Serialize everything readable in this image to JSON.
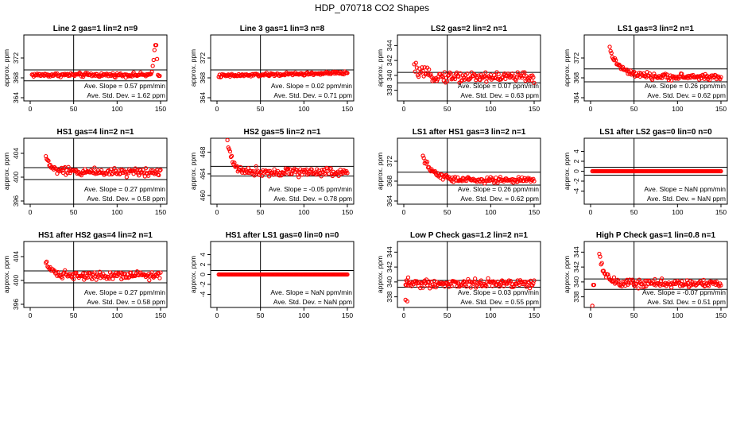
{
  "main_title": "HDP_070718  CO2 Shapes",
  "colors": {
    "points": "#ff0000",
    "lines": "#000000"
  },
  "chart_data": [
    {
      "type": "scatter",
      "title": "Line 2 gas=1 lin=2 n=9",
      "ylabel": "approx. ppm",
      "xlim": [
        0,
        150
      ],
      "ylim": [
        364,
        376
      ],
      "xticks": [
        "0",
        "50",
        "100",
        "150"
      ],
      "yticks": [
        "364",
        "368",
        "372"
      ],
      "vline": 50,
      "hlines": [
        369.6,
        367.4
      ],
      "slope_text": "Ave. Slope =  0.57  ppm/min",
      "std_text": "Ave. Std. Dev. =  1.62  ppm",
      "shape": {
        "kind": "noise",
        "level": 368.6,
        "noise": 0.3,
        "start": 2,
        "end": 150,
        "decay_amp": 0,
        "decay_tau": 1,
        "tail": [
          [
            140,
            369.2
          ],
          [
            141,
            370.4
          ],
          [
            142,
            371.6
          ],
          [
            143,
            373.6
          ],
          [
            144,
            374.6
          ],
          [
            145,
            374.6
          ],
          [
            146,
            371.8
          ],
          [
            147,
            368.6
          ],
          [
            148,
            368.4
          ],
          [
            149,
            368.4
          ]
        ]
      }
    },
    {
      "type": "scatter",
      "title": "Line 3 gas=1 lin=3 n=8",
      "ylabel": "approx. ppm",
      "xlim": [
        0,
        150
      ],
      "ylim": [
        364,
        376
      ],
      "xticks": [
        "0",
        "50",
        "100",
        "150"
      ],
      "yticks": [
        "364",
        "368",
        "372"
      ],
      "vline": 50,
      "hlines": [
        369.6
      ],
      "slope_text": "Ave. Slope =  0.02  ppm/min",
      "std_text": "Ave. Std. Dev. =  0.71  ppm",
      "shape": {
        "kind": "noise",
        "level": 368.4,
        "noise": 0.25,
        "start": 2,
        "end": 150,
        "decay_amp": 0,
        "decay_tau": 1,
        "ramp": 0.6
      }
    },
    {
      "type": "scatter",
      "title": "LS2 gas=2 lin=2 n=1",
      "ylabel": "approx. ppm",
      "xlim": [
        0,
        150
      ],
      "ylim": [
        337,
        345
      ],
      "xticks": [
        "0",
        "50",
        "100",
        "150"
      ],
      "yticks": [
        "338",
        "340",
        "342",
        "344"
      ],
      "vline": 50,
      "hlines": [
        340.4,
        339
      ],
      "slope_text": "Ave. Slope =  0.07  ppm/min",
      "std_text": "Ave. Std. Dev. =  0.63  ppm",
      "shape": {
        "kind": "noise",
        "level": 339.8,
        "noise": 0.55,
        "start": 12,
        "end": 150,
        "decay_amp": 1.2,
        "decay_tau": 10
      }
    },
    {
      "type": "scatter",
      "title": "LS1 gas=3 lin=2 n=1",
      "ylabel": "approx. ppm",
      "xlim": [
        0,
        150
      ],
      "ylim": [
        364,
        376
      ],
      "xticks": [
        "0",
        "50",
        "100",
        "150"
      ],
      "yticks": [
        "364",
        "368",
        "372"
      ],
      "vline": 50,
      "hlines": [
        369.8,
        367.2
      ],
      "slope_text": "Ave. Slope =  0.26  ppm/min",
      "std_text": "Ave. Std. Dev. =  0.62  ppm",
      "shape": {
        "kind": "noise",
        "level": 368.2,
        "noise": 0.45,
        "start": 22,
        "end": 150,
        "decay_amp": 5.5,
        "decay_tau": 12
      }
    },
    {
      "type": "scatter",
      "title": "HS1 gas=4 lin=2 n=1",
      "ylabel": "approx. ppm",
      "xlim": [
        0,
        150
      ],
      "ylim": [
        396,
        406
      ],
      "xticks": [
        "0",
        "50",
        "100",
        "150"
      ],
      "yticks": [
        "396",
        "400",
        "404"
      ],
      "vline": 50,
      "hlines": [
        401.6,
        399.6
      ],
      "slope_text": "Ave. Slope =  0.27  ppm/min",
      "std_text": "Ave. Std. Dev. =  0.58  ppm",
      "shape": {
        "kind": "noise",
        "level": 400.9,
        "noise": 0.5,
        "start": 18,
        "end": 150,
        "decay_amp": 2.5,
        "decay_tau": 6
      }
    },
    {
      "type": "scatter",
      "title": "HS2 gas=5 lin=2 n=1",
      "ylabel": "approx. ppm",
      "xlim": [
        0,
        150
      ],
      "ylim": [
        459,
        470
      ],
      "xticks": [
        "0",
        "50",
        "100",
        "150"
      ],
      "yticks": [
        "460",
        "464",
        "468"
      ],
      "vline": 50,
      "hlines": [
        465.4,
        463.6
      ],
      "slope_text": "Ave. Slope =  -0.05  ppm/min",
      "std_text": "Ave. Std. Dev. =  0.78  ppm",
      "shape": {
        "kind": "noise",
        "level": 464.4,
        "noise": 0.6,
        "start": 12,
        "end": 150,
        "decay_amp": 5.5,
        "decay_tau": 6
      }
    },
    {
      "type": "scatter",
      "title": "LS1 after HS1 gas=3 lin=2 n=1",
      "ylabel": "approx. ppm",
      "xlim": [
        0,
        150
      ],
      "ylim": [
        364,
        376
      ],
      "xticks": [
        "0",
        "50",
        "100",
        "150"
      ],
      "yticks": [
        "364",
        "368",
        "372"
      ],
      "vline": 50,
      "hlines": [
        369.8,
        367.2
      ],
      "slope_text": "Ave. Slope =  0.26  ppm/min",
      "std_text": "Ave. Std. Dev. =  0.62  ppm",
      "shape": {
        "kind": "noise",
        "level": 368.2,
        "noise": 0.45,
        "start": 22,
        "end": 150,
        "decay_amp": 4.5,
        "decay_tau": 12
      }
    },
    {
      "type": "scatter",
      "title": "LS1 after LS2 gas=0 lin=0 n=0",
      "ylabel": "approx. ppm",
      "xlim": [
        0,
        150
      ],
      "ylim": [
        -6,
        6
      ],
      "xticks": [
        "0",
        "50",
        "100",
        "150"
      ],
      "yticks": [
        "-4",
        "-2",
        "0",
        "2",
        "4"
      ],
      "vline": 50,
      "hlines": [
        0.8,
        -0.8
      ],
      "slope_text": "Ave. Slope =  NaN  ppm/min",
      "std_text": "Ave. Std. Dev. =  NaN  ppm",
      "shape": {
        "kind": "flat",
        "level": 0,
        "start": 2,
        "end": 150
      }
    },
    {
      "type": "scatter",
      "title": "HS1 after HS2 gas=4 lin=2 n=1",
      "ylabel": "approx. ppm",
      "xlim": [
        0,
        150
      ],
      "ylim": [
        396,
        406
      ],
      "xticks": [
        "0",
        "50",
        "100",
        "150"
      ],
      "yticks": [
        "396",
        "400",
        "404"
      ],
      "vline": 50,
      "hlines": [
        401.6,
        399.6
      ],
      "slope_text": "Ave. Slope =  0.27  ppm/min",
      "std_text": "Ave. Std. Dev. =  0.58  ppm",
      "shape": {
        "kind": "noise",
        "level": 400.9,
        "noise": 0.5,
        "start": 18,
        "end": 150,
        "decay_amp": 2.6,
        "decay_tau": 6
      }
    },
    {
      "type": "scatter",
      "title": "HS1 after LS1 gas=0 lin=0 n=0",
      "ylabel": "approx. ppm",
      "xlim": [
        0,
        150
      ],
      "ylim": [
        -6,
        6
      ],
      "xticks": [
        "0",
        "50",
        "100",
        "150"
      ],
      "yticks": [
        "-4",
        "-2",
        "0",
        "2",
        "4"
      ],
      "vline": 50,
      "hlines": [
        0.8
      ],
      "slope_text": "Ave. Slope =  NaN  ppm/min",
      "std_text": "Ave. Std. Dev. =  NaN  ppm",
      "shape": {
        "kind": "flat",
        "level": 0,
        "start": 2,
        "end": 150
      }
    },
    {
      "type": "scatter",
      "title": "Low P Check gas=1.2 lin=2 n=1",
      "ylabel": "approx. ppm",
      "xlim": [
        0,
        150
      ],
      "ylim": [
        337,
        345
      ],
      "xticks": [
        "0",
        "50",
        "100",
        "150"
      ],
      "yticks": [
        "338",
        "340",
        "342",
        "344"
      ],
      "vline": 50,
      "hlines": [
        340.2,
        339.3
      ],
      "slope_text": "Ave. Slope =  0.03  ppm/min",
      "std_text": "Ave. Std. Dev. =  0.55  ppm",
      "shape": {
        "kind": "noise",
        "level": 339.8,
        "noise": 0.45,
        "start": 2,
        "end": 150,
        "decay_amp": 0,
        "decay_tau": 1,
        "head": [
          [
            2,
            337.6
          ],
          [
            4,
            337.4
          ],
          [
            5,
            340.6
          ],
          [
            3,
            340.2
          ]
        ]
      }
    },
    {
      "type": "scatter",
      "title": "High P Check gas=1 lin=0.8 n=1",
      "ylabel": "approx. ppm",
      "xlim": [
        0,
        150
      ],
      "ylim": [
        337,
        345
      ],
      "xticks": [
        "0",
        "50",
        "100",
        "150"
      ],
      "yticks": [
        "338",
        "340",
        "342",
        "344"
      ],
      "vline": 50,
      "hlines": [
        340.4,
        339
      ],
      "slope_text": "Ave. Slope =  -0.07  ppm/min",
      "std_text": "Ave. Std. Dev. =  0.51  ppm",
      "shape": {
        "kind": "noise",
        "level": 339.8,
        "noise": 0.4,
        "start": 10,
        "end": 150,
        "decay_amp": 4,
        "decay_tau": 6,
        "head": [
          [
            2,
            336.8
          ],
          [
            3,
            339.6
          ],
          [
            4,
            339.6
          ]
        ]
      }
    }
  ]
}
